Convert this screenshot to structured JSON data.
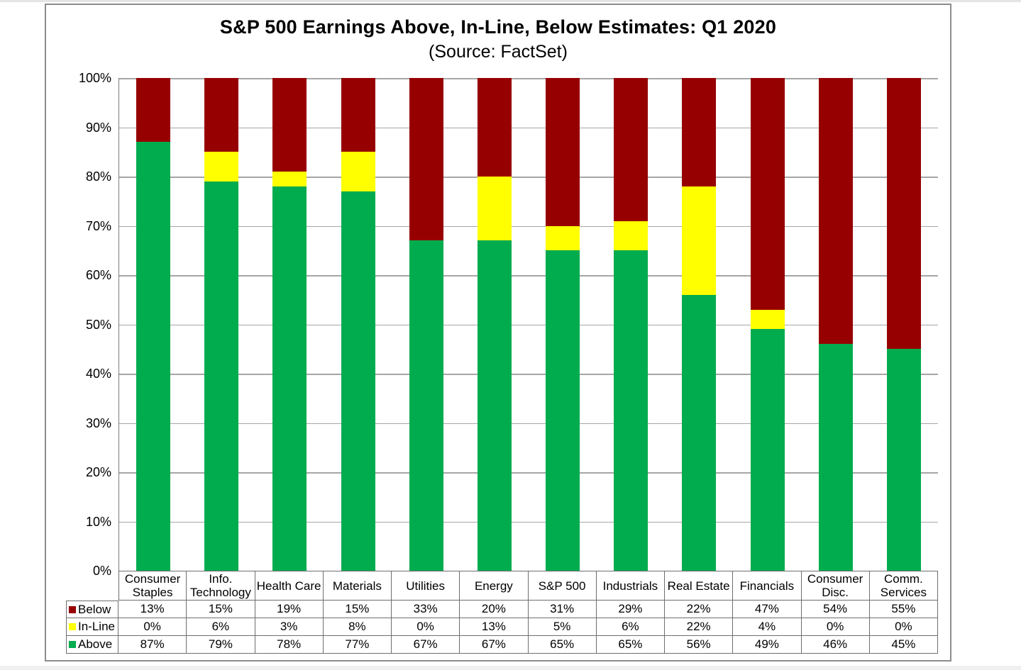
{
  "chart": {
    "title": "S&P 500 Earnings Above, In-Line, Below Estimates: Q1 2020",
    "subtitle": "(Source: FactSet)"
  },
  "chart_data": {
    "type": "bar",
    "stacked": true,
    "orientation": "vertical",
    "title": "S&P 500 Earnings Above, In-Line, Below Estimates: Q1 2020",
    "subtitle": "(Source: FactSet)",
    "categories": [
      "Consumer Staples",
      "Info. Technology",
      "Health Care",
      "Materials",
      "Utilities",
      "Energy",
      "S&P 500",
      "Industrials",
      "Real Estate",
      "Financials",
      "Consumer Disc.",
      "Comm. Services"
    ],
    "series": [
      {
        "name": "Below",
        "color": "#970000",
        "values": [
          13,
          15,
          19,
          15,
          33,
          20,
          31,
          29,
          22,
          47,
          54,
          55
        ]
      },
      {
        "name": "In-Line",
        "color": "#FFFF00",
        "values": [
          0,
          6,
          3,
          8,
          0,
          13,
          5,
          6,
          22,
          4,
          0,
          0
        ]
      },
      {
        "name": "Above",
        "color": "#00AC4E",
        "values": [
          87,
          79,
          78,
          77,
          67,
          67,
          65,
          65,
          56,
          49,
          46,
          45
        ]
      }
    ],
    "value_suffix": "%",
    "ylim": [
      0,
      100
    ],
    "y_ticks": [
      "100%",
      "90%",
      "80%",
      "70%",
      "60%",
      "50%",
      "40%",
      "30%",
      "20%",
      "10%",
      "0%"
    ],
    "grid": true,
    "gridline_step_pct": 10,
    "legend_position": "table-left-column",
    "colors": {
      "gridline": "#a6a6a6",
      "table_border": "#6e6e6e",
      "frame_border": "#8c8c8c"
    }
  }
}
